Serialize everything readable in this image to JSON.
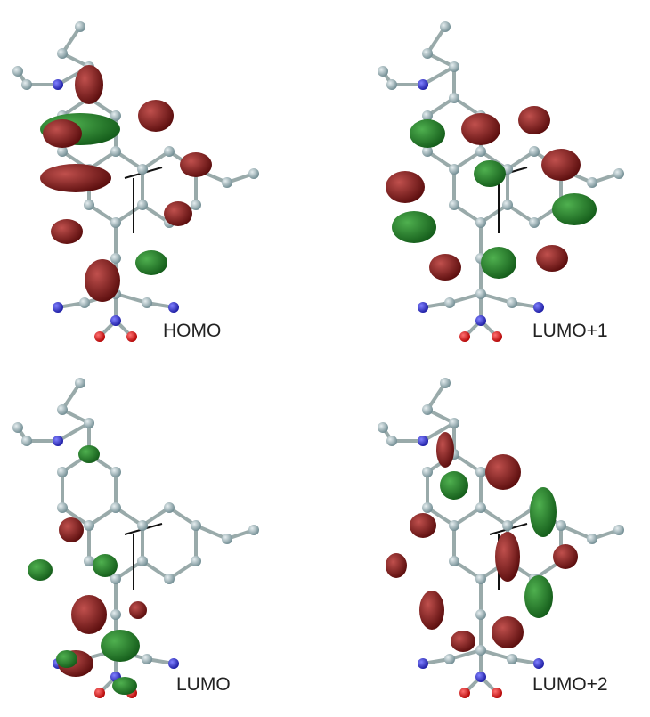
{
  "panels": [
    {
      "label": "HOMO"
    },
    {
      "label": "LUMO+1"
    },
    {
      "label": "LUMO"
    },
    {
      "label": "LUMO+2"
    }
  ]
}
